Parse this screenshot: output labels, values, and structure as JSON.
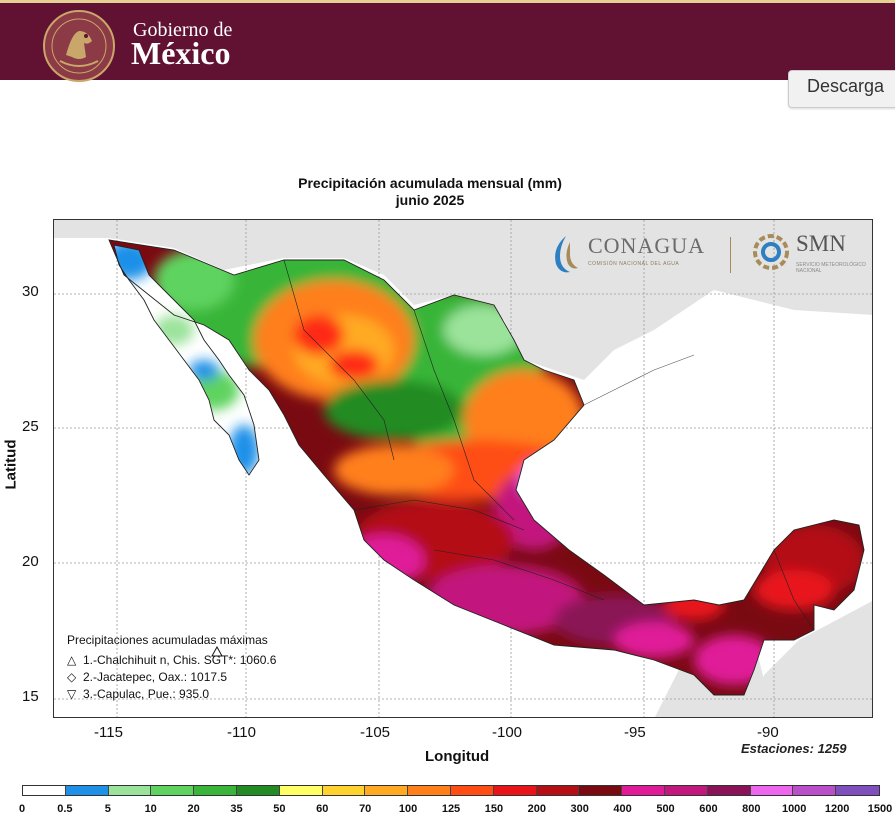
{
  "header": {
    "line1": "Gobierno de",
    "line2": "México",
    "download_label": "Descarga",
    "colors": {
      "bar": "#611232",
      "accent": "#e6d194"
    }
  },
  "map": {
    "title": "Precipitación acumulada mensual (mm)",
    "subtitle": "junio 2025",
    "xlabel": "Longitud",
    "ylabel": "Latitud",
    "x_ticks": [
      "-115",
      "-110",
      "-105",
      "-100",
      "-95",
      "-90"
    ],
    "y_ticks": [
      "30",
      "25",
      "20",
      "15"
    ],
    "stations_label": "Estaciones:  1259",
    "maxima": {
      "title": "Precipitaciones acumuladas máximas",
      "rows": [
        {
          "symbol": "△",
          "text": "1.-Chalchihuit n, Chis. SGT*: 1060.6"
        },
        {
          "symbol": "◇",
          "text": "2.-Jacatepec, Oax.: 1017.5"
        },
        {
          "symbol": "▽",
          "text": "3.-Capulac, Pue.: 935.0"
        }
      ]
    },
    "logos": {
      "conagua": "CONAGUA",
      "conagua_sub": "COMISIÓN NACIONAL DEL AGUA",
      "smn": "SMN",
      "smn_sub": "SERVICIO METEOROLÓGICO NACIONAL"
    }
  },
  "legend": {
    "labels": [
      "0",
      "0.5",
      "5",
      "10",
      "20",
      "35",
      "50",
      "60",
      "70",
      "100",
      "125",
      "150",
      "200",
      "300",
      "400",
      "500",
      "600",
      "800",
      "1000",
      "1200",
      "1500"
    ],
    "colors": [
      "#ffffff",
      "#1e90e8",
      "#9be39b",
      "#5fd35f",
      "#39b539",
      "#238b23",
      "#ffff66",
      "#ffd22e",
      "#ffaa22",
      "#ff7f1a",
      "#ff4d14",
      "#e8141a",
      "#b40f14",
      "#7a0a12",
      "#e01a99",
      "#c2187e",
      "#8a1257",
      "#ee66ee",
      "#b94fc9",
      "#7e4fbd",
      "#3a3a96"
    ]
  }
}
